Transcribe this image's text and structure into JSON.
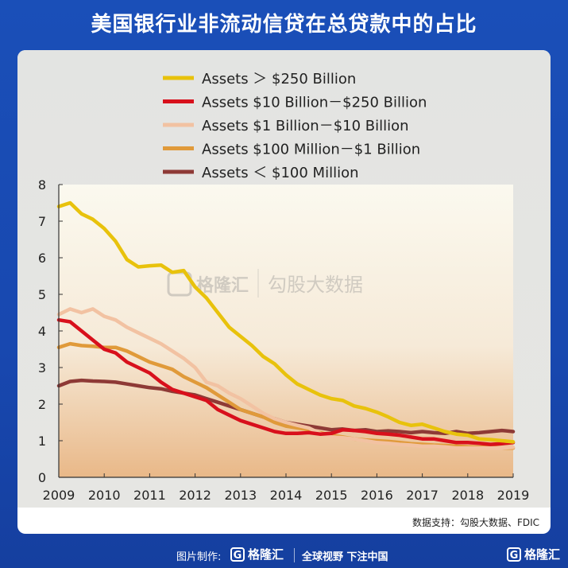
{
  "header": {
    "title": "美国银行业非流动信贷在总贷款中的占比"
  },
  "source_note": "数据支持：勾股大数据、FDIC",
  "watermark": {
    "brand": "格隆汇",
    "subtitle": "勾股大数据"
  },
  "footer": {
    "credit_label": "图片制作:",
    "brand": "格隆汇",
    "slogan": "全球视野 下注中国",
    "corner_brand": "格隆汇"
  },
  "chart_data": {
    "type": "line",
    "xlim": [
      2009,
      2019
    ],
    "ylim": [
      0,
      8
    ],
    "x_ticks": [
      "2009",
      "2010",
      "2011",
      "2012",
      "2013",
      "2014",
      "2015",
      "2016",
      "2017",
      "2018",
      "2019"
    ],
    "y_ticks": [
      "0",
      "1",
      "2",
      "3",
      "4",
      "5",
      "6",
      "7",
      "8"
    ],
    "legend_position": "top",
    "grid": false,
    "series": [
      {
        "name": "Assets ＞ $250 Billion",
        "color": "#e8c20c",
        "x": [
          2009,
          2009.25,
          2009.5,
          2009.75,
          2010,
          2010.25,
          2010.5,
          2010.75,
          2011,
          2011.25,
          2011.5,
          2011.75,
          2012,
          2012.25,
          2012.5,
          2012.75,
          2013,
          2013.25,
          2013.5,
          2013.75,
          2014,
          2014.25,
          2014.5,
          2014.75,
          2015,
          2015.25,
          2015.5,
          2015.75,
          2016,
          2016.25,
          2016.5,
          2016.75,
          2017,
          2017.25,
          2017.5,
          2017.75,
          2018,
          2018.25,
          2018.5,
          2018.75,
          2019
        ],
        "y": [
          7.4,
          7.5,
          7.2,
          7.05,
          6.8,
          6.45,
          5.95,
          5.75,
          5.78,
          5.8,
          5.6,
          5.65,
          5.2,
          4.9,
          4.5,
          4.1,
          3.85,
          3.6,
          3.3,
          3.1,
          2.8,
          2.55,
          2.4,
          2.25,
          2.15,
          2.1,
          1.95,
          1.88,
          1.78,
          1.65,
          1.5,
          1.42,
          1.45,
          1.35,
          1.25,
          1.18,
          1.15,
          1.05,
          1.03,
          1.0,
          0.97
        ]
      },
      {
        "name": "Assets $10 Billion－$250 Billion",
        "color": "#d8101c",
        "x": [
          2009,
          2009.25,
          2009.5,
          2009.75,
          2010,
          2010.25,
          2010.5,
          2010.75,
          2011,
          2011.25,
          2011.5,
          2011.75,
          2012,
          2012.25,
          2012.5,
          2012.75,
          2013,
          2013.25,
          2013.5,
          2013.75,
          2014,
          2014.25,
          2014.5,
          2014.75,
          2015,
          2015.25,
          2015.5,
          2015.75,
          2016,
          2016.25,
          2016.5,
          2016.75,
          2017,
          2017.25,
          2017.5,
          2017.75,
          2018,
          2018.25,
          2018.5,
          2018.75,
          2019
        ],
        "y": [
          4.3,
          4.25,
          4.0,
          3.75,
          3.5,
          3.4,
          3.15,
          3.0,
          2.85,
          2.6,
          2.4,
          2.3,
          2.2,
          2.1,
          1.85,
          1.7,
          1.55,
          1.45,
          1.35,
          1.25,
          1.2,
          1.2,
          1.22,
          1.18,
          1.2,
          1.3,
          1.28,
          1.25,
          1.2,
          1.18,
          1.15,
          1.1,
          1.05,
          1.05,
          1.0,
          0.95,
          0.95,
          0.93,
          0.9,
          0.92,
          0.95
        ]
      },
      {
        "name": "Assets $1 Billion－$10 Billion",
        "color": "#f2c2a2",
        "x": [
          2009,
          2009.25,
          2009.5,
          2009.75,
          2010,
          2010.25,
          2010.5,
          2010.75,
          2011,
          2011.25,
          2011.5,
          2011.75,
          2012,
          2012.25,
          2012.5,
          2012.75,
          2013,
          2013.25,
          2013.5,
          2013.75,
          2014,
          2014.25,
          2014.5,
          2014.75,
          2015,
          2015.25,
          2015.5,
          2015.75,
          2016,
          2016.25,
          2016.5,
          2016.75,
          2017,
          2017.25,
          2017.5,
          2017.75,
          2018,
          2018.25,
          2018.5,
          2018.75,
          2019
        ],
        "y": [
          4.45,
          4.6,
          4.5,
          4.6,
          4.4,
          4.3,
          4.1,
          3.95,
          3.8,
          3.65,
          3.45,
          3.25,
          3.0,
          2.6,
          2.5,
          2.3,
          2.15,
          1.95,
          1.75,
          1.6,
          1.5,
          1.42,
          1.35,
          1.2,
          1.1,
          1.08,
          1.05,
          1.0,
          0.95,
          0.93,
          0.9,
          0.88,
          0.85,
          0.85,
          0.83,
          0.8,
          0.8,
          0.8,
          0.8,
          0.8,
          0.82
        ]
      },
      {
        "name": "Assets $100 Million－$1 Billion",
        "color": "#e09a3a",
        "x": [
          2009,
          2009.25,
          2009.5,
          2009.75,
          2010,
          2010.25,
          2010.5,
          2010.75,
          2011,
          2011.25,
          2011.5,
          2011.75,
          2012,
          2012.25,
          2012.5,
          2012.75,
          2013,
          2013.25,
          2013.5,
          2013.75,
          2014,
          2014.25,
          2014.5,
          2014.75,
          2015,
          2015.25,
          2015.5,
          2015.75,
          2016,
          2016.25,
          2016.5,
          2016.75,
          2017,
          2017.25,
          2017.5,
          2017.75,
          2018,
          2018.25,
          2018.5,
          2018.75,
          2019
        ],
        "y": [
          3.55,
          3.65,
          3.6,
          3.58,
          3.55,
          3.55,
          3.45,
          3.3,
          3.15,
          3.05,
          2.95,
          2.75,
          2.6,
          2.45,
          2.25,
          2.05,
          1.85,
          1.75,
          1.65,
          1.5,
          1.4,
          1.35,
          1.3,
          1.22,
          1.15,
          1.1,
          1.05,
          1.02,
          1.0,
          0.98,
          0.95,
          0.92,
          0.9,
          0.88,
          0.87,
          0.85,
          0.83,
          0.82,
          0.82,
          0.8,
          0.8
        ]
      },
      {
        "name": "Assets ＜ $100 Million",
        "color": "#8e3a36",
        "x": [
          2009,
          2009.25,
          2009.5,
          2009.75,
          2010,
          2010.25,
          2010.5,
          2010.75,
          2011,
          2011.25,
          2011.5,
          2011.75,
          2012,
          2012.25,
          2012.5,
          2012.75,
          2013,
          2013.25,
          2013.5,
          2013.75,
          2014,
          2014.25,
          2014.5,
          2014.75,
          2015,
          2015.25,
          2015.5,
          2015.75,
          2016,
          2016.25,
          2016.5,
          2016.75,
          2017,
          2017.25,
          2017.5,
          2017.75,
          2018,
          2018.25,
          2018.5,
          2018.75,
          2019
        ],
        "y": [
          2.5,
          2.62,
          2.65,
          2.63,
          2.62,
          2.6,
          2.55,
          2.5,
          2.45,
          2.42,
          2.35,
          2.3,
          2.25,
          2.15,
          2.05,
          1.95,
          1.85,
          1.75,
          1.65,
          1.6,
          1.5,
          1.45,
          1.4,
          1.35,
          1.3,
          1.32,
          1.28,
          1.3,
          1.25,
          1.27,
          1.25,
          1.22,
          1.25,
          1.22,
          1.2,
          1.25,
          1.2,
          1.22,
          1.25,
          1.28,
          1.25
        ]
      }
    ]
  }
}
